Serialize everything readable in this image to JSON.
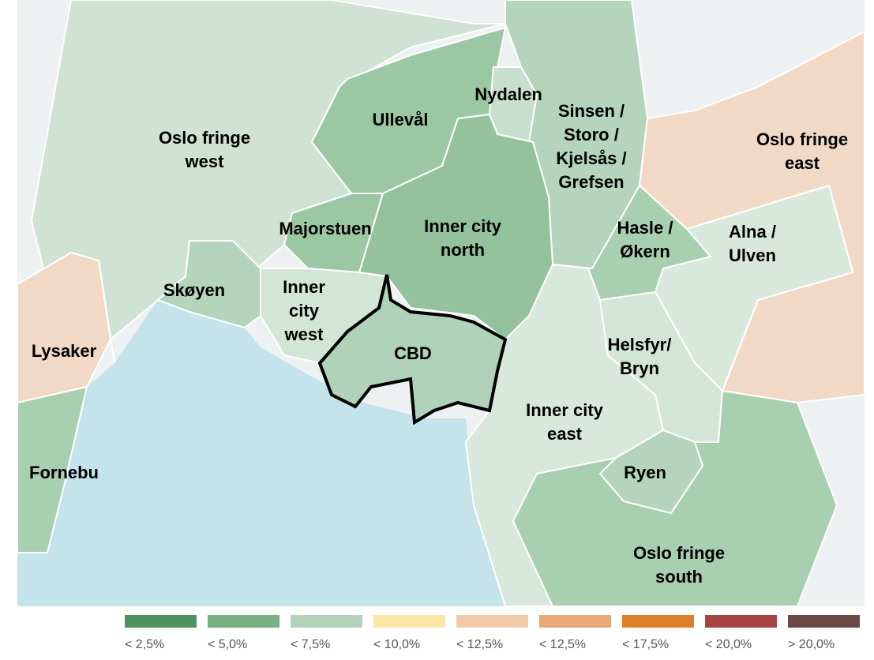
{
  "regions": [
    {
      "name": [
        "Oslo fringe",
        "west"
      ],
      "color": "#cfe2d3"
    },
    {
      "name": [
        "Ullevål"
      ],
      "color": "#9bc7a3"
    },
    {
      "name": [
        "Nydalen"
      ],
      "color": "#c9dfcd"
    },
    {
      "name": [
        "Sinsen /",
        "Storo /",
        "Kjelsås /",
        "Grefsen"
      ],
      "color": "#b4d4bb"
    },
    {
      "name": [
        "Oslo fringe",
        "east"
      ],
      "color": "#f2d9c6"
    },
    {
      "name": [
        "Alna /",
        "Ulven"
      ],
      "color": "#d8e8dc"
    },
    {
      "name": [
        "Hasle /",
        "Økern"
      ],
      "color": "#a9cfb1"
    },
    {
      "name": [
        "Inner city",
        "north"
      ],
      "color": "#93c29c"
    },
    {
      "name": [
        "Majorstuen"
      ],
      "color": "#9bc7a3"
    },
    {
      "name": [
        "Inner",
        "city",
        "west"
      ],
      "color": "#d2e5d6"
    },
    {
      "name": [
        "CBD"
      ],
      "color": "#b0d2b8"
    },
    {
      "name": [
        "Skøyen"
      ],
      "color": "#b4d4bb"
    },
    {
      "name": [
        "Lysaker"
      ],
      "color": "#f2d9c6"
    },
    {
      "name": [
        "Fornebu"
      ],
      "color": "#a9cfb1"
    },
    {
      "name": [
        "Inner city",
        "east"
      ],
      "color": "#d8e8dc"
    },
    {
      "name": [
        "Helsfyr/",
        "Bryn"
      ],
      "color": "#d2e5d6"
    },
    {
      "name": [
        "Ryen"
      ],
      "color": "#b4d4bb"
    },
    {
      "name": [
        "Oslo fringe",
        "south"
      ],
      "color": "#a9cfb1"
    }
  ],
  "legend": [
    {
      "label": "< 2,5%",
      "color": "#4e9263"
    },
    {
      "label": "< 5,0%",
      "color": "#7bb087"
    },
    {
      "label": "< 7,5%",
      "color": "#b2d3b9"
    },
    {
      "label": "< 10,0%",
      "color": "#fbe5a7"
    },
    {
      "label": "< 12,5%",
      "color": "#f1cba9"
    },
    {
      "label": "< 12,5%",
      "color": "#e9a877"
    },
    {
      "label": "< 17,5%",
      "color": "#e07f2a"
    },
    {
      "label": "< 20,0%",
      "color": "#a84443"
    },
    {
      "label": "> 20,0%",
      "color": "#6a4a44"
    }
  ]
}
